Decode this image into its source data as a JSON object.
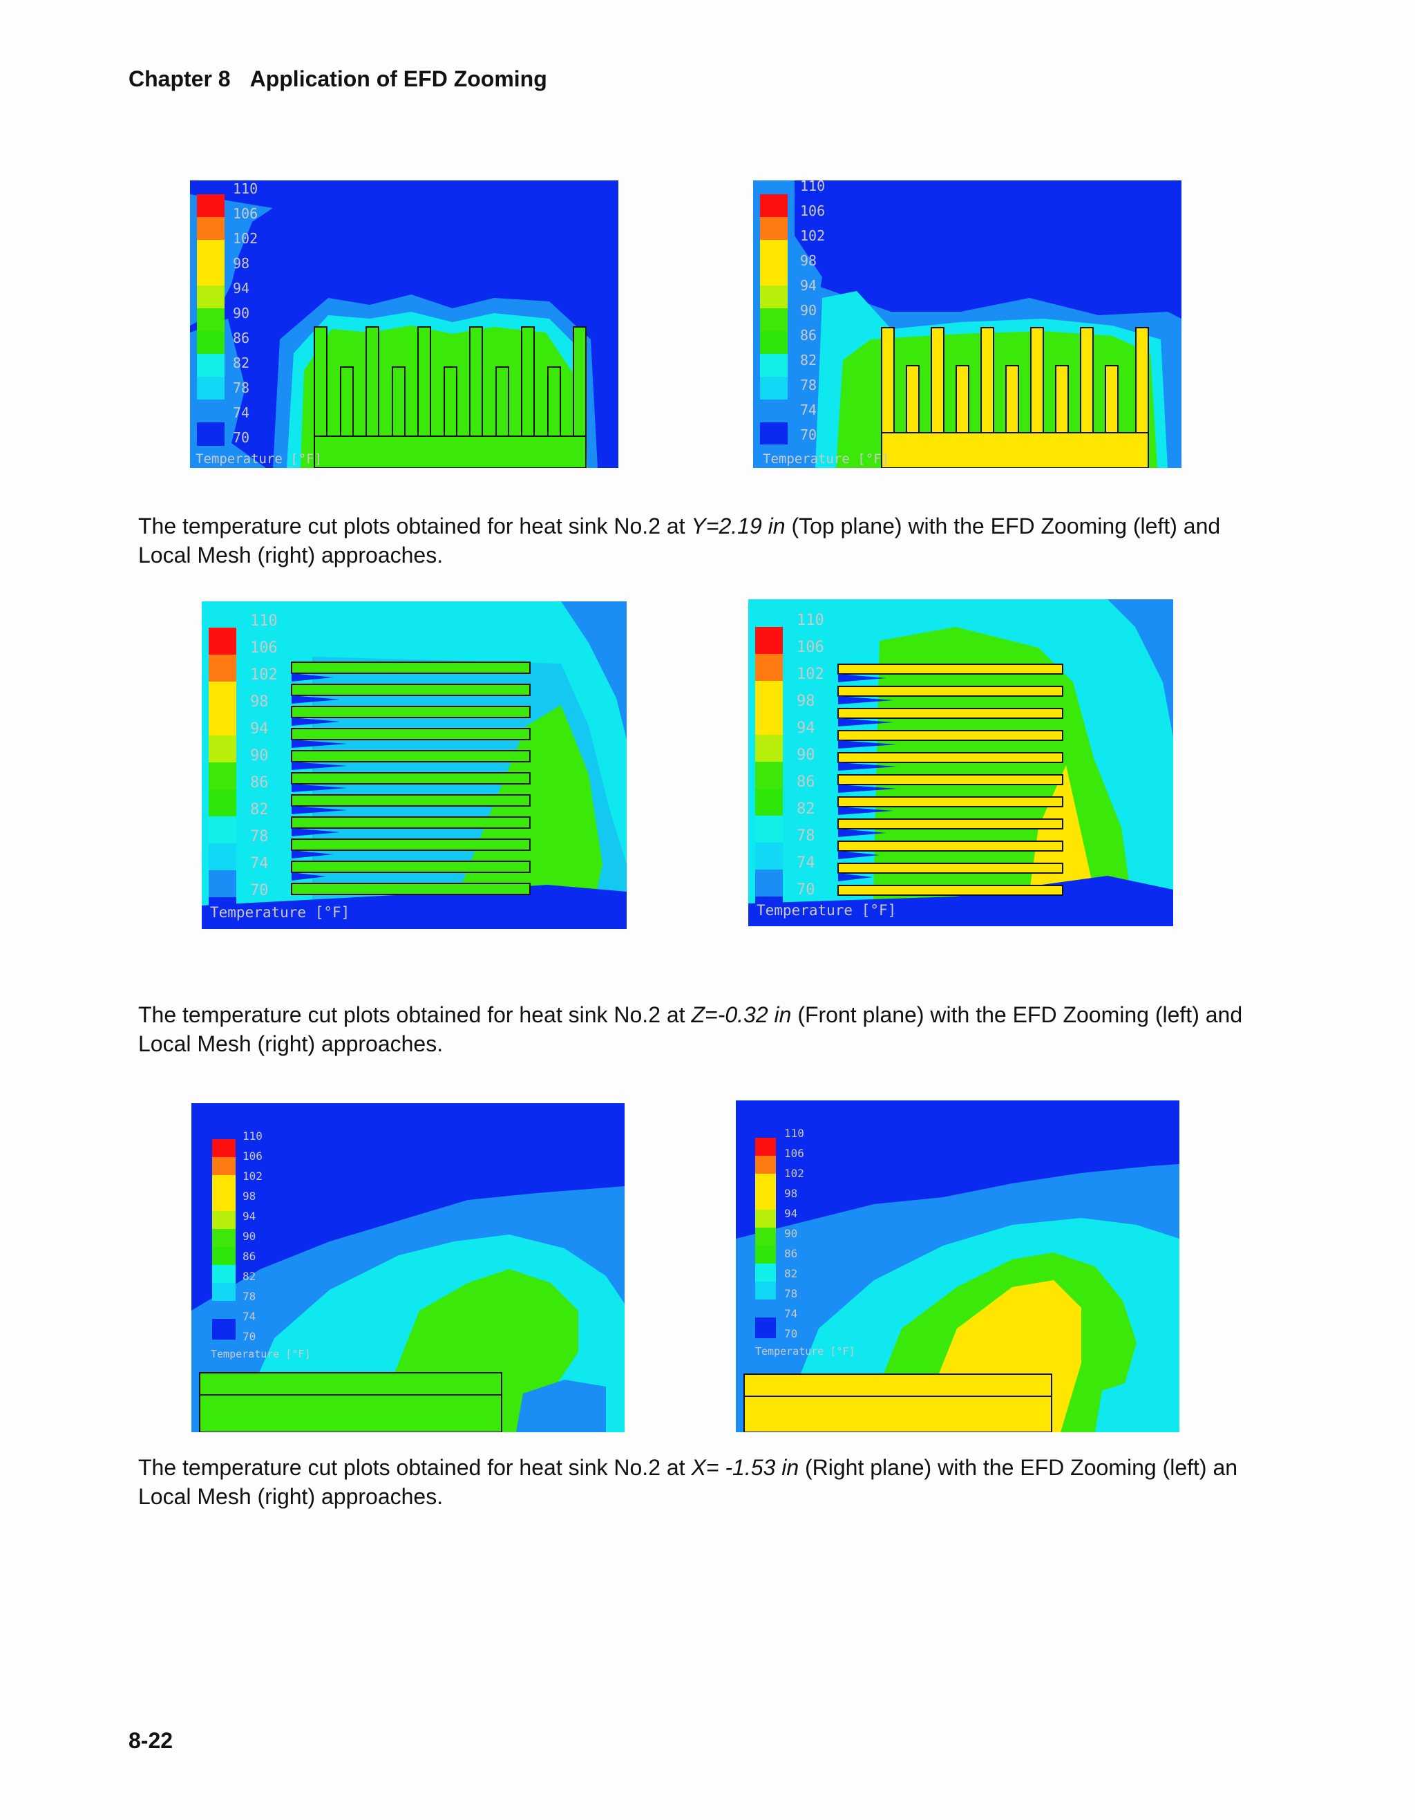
{
  "header": {
    "chapter": "Chapter 8",
    "title": "Application of EFD Zooming"
  },
  "legend": {
    "ticks": [
      "110",
      "106",
      "102",
      "98",
      "94",
      "90",
      "86",
      "82",
      "78",
      "74",
      "70"
    ],
    "title": "Temperature [°F]",
    "colors": [
      "#ff1010",
      "#ff7a10",
      "#ffe600",
      "#ffe600",
      "#b8ef0a",
      "#3fe60a",
      "#2ee60a",
      "#10f0e8",
      "#10d8f5",
      "#1a8ef5",
      "#0a2af0"
    ]
  },
  "colors": {
    "cold": "#0a2af0",
    "cool": "#1a8ef5",
    "cyan": "#10e8f0",
    "green": "#3ae80a",
    "hot": "#ffe600",
    "outline": "#111111"
  },
  "figures": [
    {
      "caption": {
        "pre": "The temperature cut plots obtained for heat sink No.2 at ",
        "var": "Y=2.19 in",
        "post": " (Top plane) with the EFD Zooming (left) and Local Mesh (right) approaches."
      }
    },
    {
      "caption": {
        "pre": "The temperature cut plots obtained for heat sink No.2 at ",
        "var": "Z=-0.32 in",
        "post": " (Front plane) with the EFD Zooming (left) and Local Mesh (right) approaches."
      }
    },
    {
      "caption": {
        "pre": "The temperature cut plots obtained for heat sink No.2 at ",
        "var": "X= -1.53 in",
        "post": " (Right plane) with the EFD Zooming (left) an Local Mesh (right) approaches."
      }
    }
  ],
  "page_number": "8-22"
}
